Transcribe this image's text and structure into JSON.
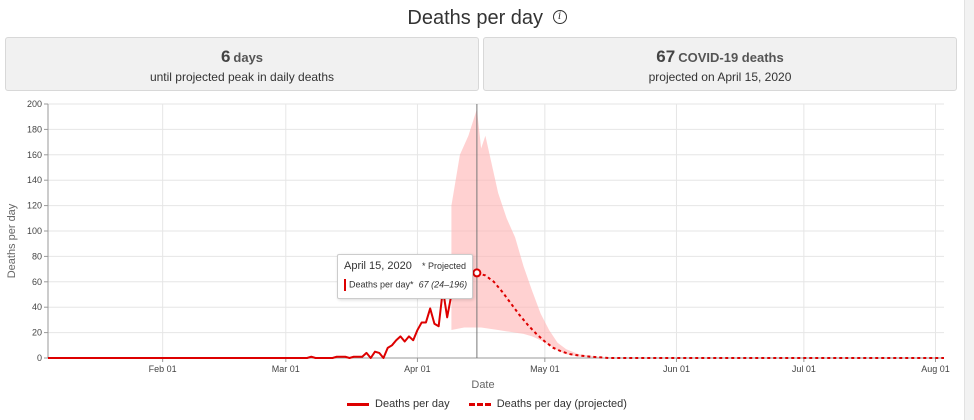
{
  "header": {
    "title": "Deaths per day"
  },
  "cards": {
    "left": {
      "value": "6",
      "unit": "days",
      "caption": "until projected peak in daily deaths"
    },
    "right": {
      "value": "67",
      "unit": "COVID-19 deaths",
      "caption": "projected on April 15, 2020"
    }
  },
  "tooltip": {
    "date": "April 15, 2020",
    "projected_note": "* Projected",
    "series_label": "Deaths per day*",
    "value": "67",
    "range": "(24–196)"
  },
  "legend": {
    "actual": "Deaths per day",
    "projected": "Deaths per day (projected)"
  },
  "colors": {
    "series": "#dd0000",
    "band": "#ffb3b3"
  },
  "chart_data": {
    "type": "line",
    "title": "Deaths per day",
    "xlabel": "Date",
    "ylabel": "Deaths per day",
    "ylim": [
      0,
      200
    ],
    "yticks": [
      0,
      20,
      40,
      60,
      80,
      100,
      120,
      140,
      160,
      180,
      200
    ],
    "x_start_date": "2020-01-05",
    "x_end_date": "2020-08-04",
    "xticks": [
      {
        "day": 27,
        "label": "Feb 01"
      },
      {
        "day": 56,
        "label": "Mar 01"
      },
      {
        "day": 87,
        "label": "Apr 01"
      },
      {
        "day": 117,
        "label": "May 01"
      },
      {
        "day": 148,
        "label": "Jun 01"
      },
      {
        "day": 178,
        "label": "Jul 01"
      },
      {
        "day": 209,
        "label": "Aug 01"
      }
    ],
    "marker_day": 101,
    "marker_value": 67,
    "series": [
      {
        "name": "Deaths per day",
        "style": "solid",
        "points": [
          [
            0,
            0
          ],
          [
            61,
            0
          ],
          [
            62,
            1
          ],
          [
            63,
            0
          ],
          [
            67,
            0
          ],
          [
            68,
            1
          ],
          [
            70,
            1
          ],
          [
            71,
            0
          ],
          [
            72,
            1
          ],
          [
            74,
            1
          ],
          [
            75,
            4
          ],
          [
            76,
            0
          ],
          [
            77,
            5
          ],
          [
            78,
            4
          ],
          [
            79,
            0
          ],
          [
            80,
            8
          ],
          [
            81,
            10
          ],
          [
            82,
            14
          ],
          [
            83,
            17
          ],
          [
            84,
            13
          ],
          [
            85,
            17
          ],
          [
            86,
            14
          ],
          [
            87,
            22
          ],
          [
            88,
            28
          ],
          [
            89,
            28
          ],
          [
            90,
            39
          ],
          [
            91,
            27
          ],
          [
            92,
            25
          ],
          [
            93,
            54
          ],
          [
            94,
            32
          ],
          [
            95,
            50
          ]
        ]
      },
      {
        "name": "Deaths per day (projected)",
        "style": "dashed",
        "points": [
          [
            95,
            50
          ],
          [
            97,
            62
          ],
          [
            99,
            66
          ],
          [
            101,
            67
          ],
          [
            103,
            65
          ],
          [
            105,
            60
          ],
          [
            107,
            52
          ],
          [
            109,
            43
          ],
          [
            111,
            34
          ],
          [
            113,
            26
          ],
          [
            115,
            19
          ],
          [
            117,
            13
          ],
          [
            119,
            8
          ],
          [
            121,
            5
          ],
          [
            123,
            3
          ],
          [
            125,
            2
          ],
          [
            128,
            1
          ],
          [
            132,
            0
          ],
          [
            211,
            0
          ]
        ]
      },
      {
        "name": "Projection uncertainty",
        "style": "band",
        "lower": [
          [
            95,
            22
          ],
          [
            98,
            24
          ],
          [
            100,
            24
          ],
          [
            102,
            24
          ],
          [
            104,
            23
          ],
          [
            106,
            22
          ],
          [
            108,
            21
          ],
          [
            110,
            20
          ],
          [
            112,
            19
          ],
          [
            114,
            17
          ],
          [
            116,
            14
          ],
          [
            118,
            10
          ],
          [
            120,
            6
          ],
          [
            122,
            3
          ],
          [
            125,
            1
          ],
          [
            132,
            0
          ]
        ],
        "upper": [
          [
            95,
            120
          ],
          [
            97,
            160
          ],
          [
            99,
            175
          ],
          [
            101,
            196
          ],
          [
            102,
            165
          ],
          [
            103,
            175
          ],
          [
            104,
            160
          ],
          [
            106,
            130
          ],
          [
            108,
            110
          ],
          [
            110,
            95
          ],
          [
            112,
            72
          ],
          [
            114,
            53
          ],
          [
            116,
            35
          ],
          [
            118,
            22
          ],
          [
            120,
            12
          ],
          [
            122,
            7
          ],
          [
            125,
            3
          ],
          [
            132,
            0
          ]
        ]
      }
    ]
  }
}
